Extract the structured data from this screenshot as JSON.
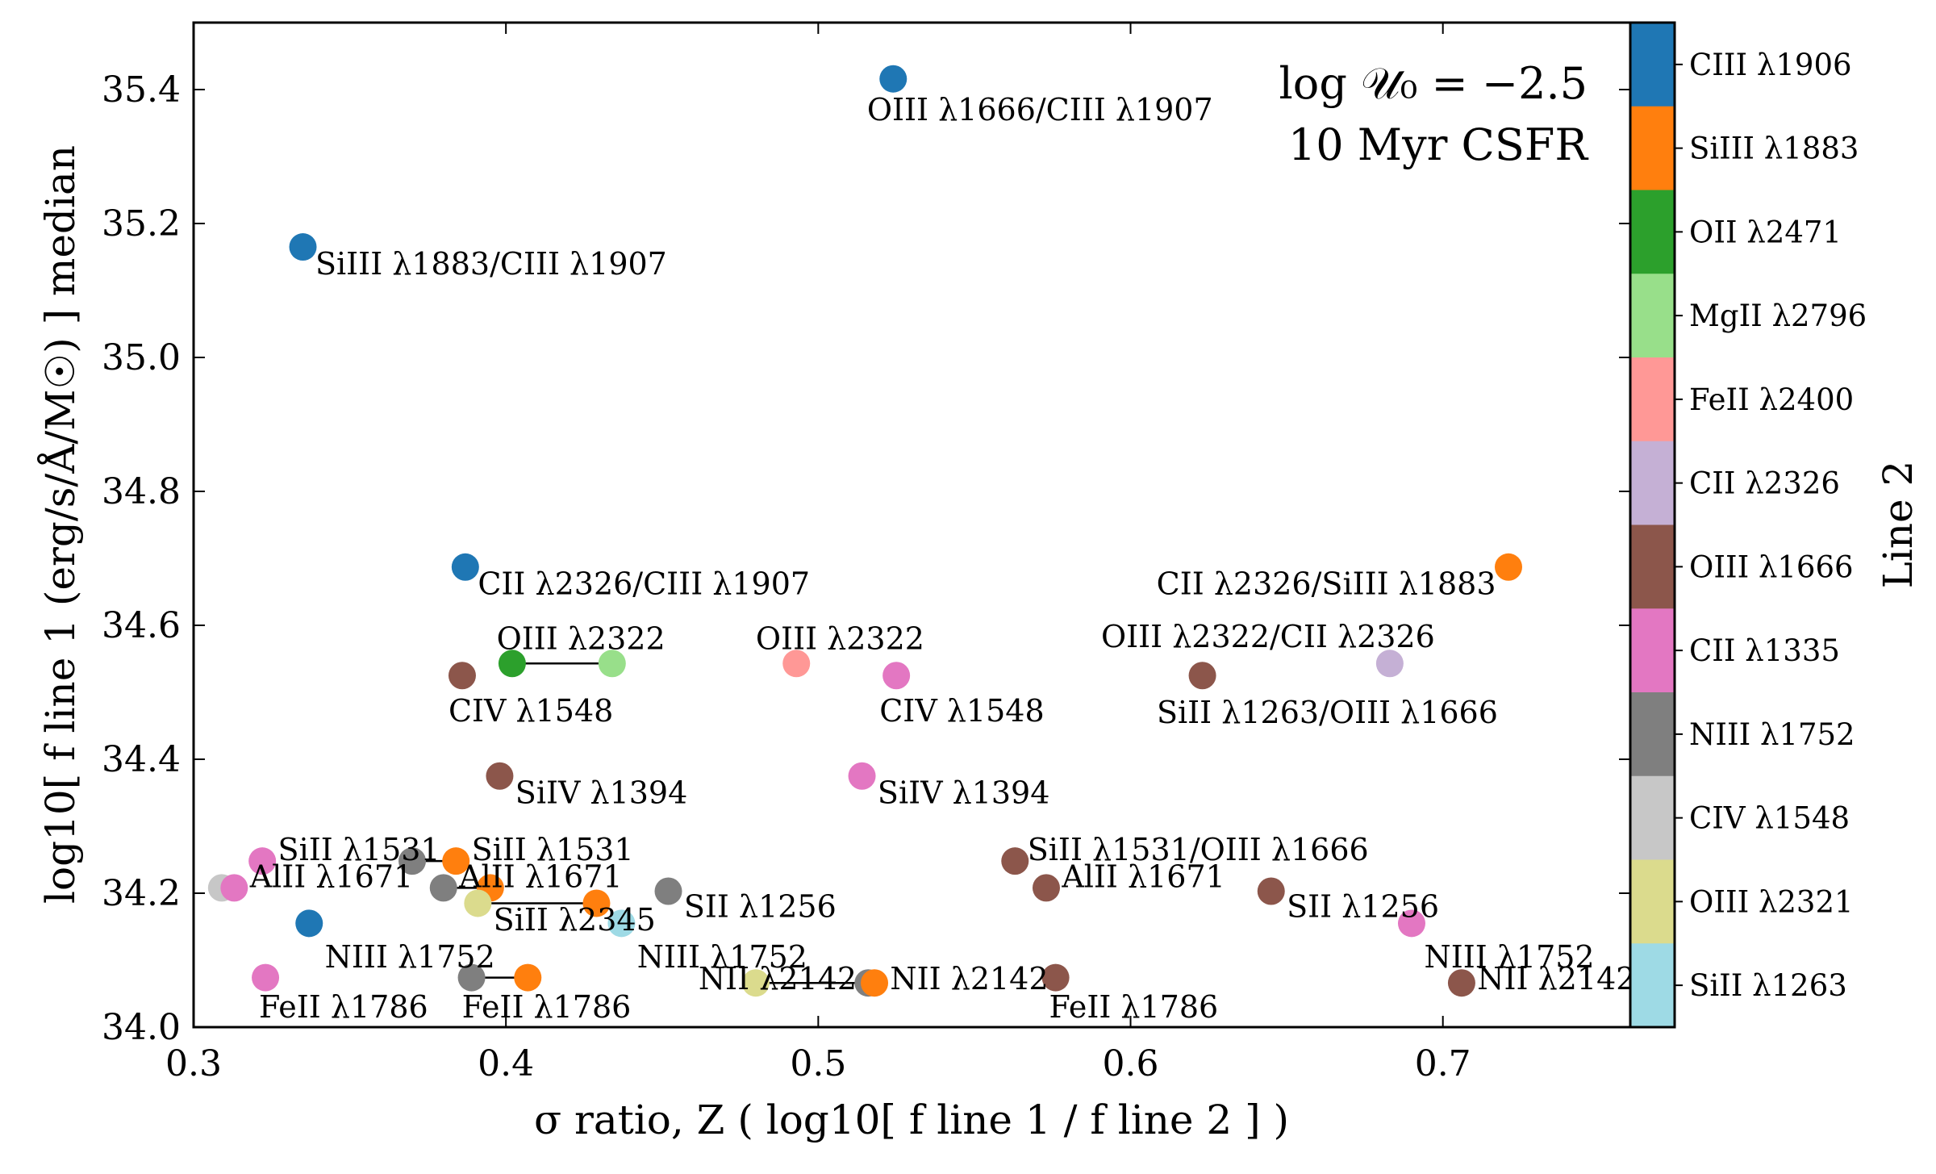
{
  "chart_data": {
    "type": "scatter",
    "xlabel": "σ ratio, Z ( log10[ f line 1 / f line 2 ] )",
    "ylabel": "log10[ f line 1 (erg/s/Å/M☉) ] median",
    "xlim": [
      0.3,
      0.76
    ],
    "ylim": [
      34.0,
      35.5
    ],
    "xticks": [
      "0.3",
      "0.4",
      "0.5",
      "0.6",
      "0.7"
    ],
    "yticks": [
      "34.0",
      "34.2",
      "34.4",
      "34.6",
      "34.8",
      "35.0",
      "35.2",
      "35.4"
    ],
    "annotation": [
      "log 𝒰₀ = −2.5",
      "10 Myr CSFR"
    ],
    "colorbar": {
      "title": "Line 2",
      "entries": [
        {
          "label": "CIII λ1906",
          "color": "#1f77b4"
        },
        {
          "label": "SiIII λ1883",
          "color": "#ff7f0e"
        },
        {
          "label": "OII λ2471",
          "color": "#2ca02c"
        },
        {
          "label": "MgII λ2796",
          "color": "#98df8a"
        },
        {
          "label": "FeII λ2400",
          "color": "#ff9896"
        },
        {
          "label": "CII λ2326",
          "color": "#c5b0d5"
        },
        {
          "label": "OIII λ1666",
          "color": "#8c564b"
        },
        {
          "label": "CII λ1335",
          "color": "#e377c2"
        },
        {
          "label": "NIII λ1752",
          "color": "#7f7f7f"
        },
        {
          "label": "CIV λ1548",
          "color": "#c7c7c7"
        },
        {
          "label": "OIII λ2321",
          "color": "#dbdb8d"
        },
        {
          "label": "SiII λ1263",
          "color": "#9edae5"
        }
      ]
    },
    "connectors": [
      {
        "x1": 0.402,
        "y1": 34.543,
        "x2": 0.434,
        "y2": 34.543
      },
      {
        "x1": 0.37,
        "y1": 34.248,
        "x2": 0.384,
        "y2": 34.248
      },
      {
        "x1": 0.38,
        "y1": 34.208,
        "x2": 0.395,
        "y2": 34.208
      },
      {
        "x1": 0.391,
        "y1": 34.185,
        "x2": 0.429,
        "y2": 34.185
      },
      {
        "x1": 0.389,
        "y1": 34.074,
        "x2": 0.407,
        "y2": 34.074
      },
      {
        "x1": 0.48,
        "y1": 34.066,
        "x2": 0.518,
        "y2": 34.066
      }
    ],
    "points": [
      {
        "x": 0.524,
        "y": 35.416,
        "color": "#1f77b4",
        "label": "OIII λ1666/CIII λ1907",
        "lx": 0.571,
        "ly": 35.37,
        "anchor": "middle"
      },
      {
        "x": 0.335,
        "y": 35.165,
        "color": "#1f77b4",
        "label": "SiIII λ1883/CIII λ1907",
        "lx": 0.339,
        "ly": 35.14,
        "anchor": "start"
      },
      {
        "x": 0.387,
        "y": 34.687,
        "color": "#1f77b4",
        "label": "CII λ2326/CIII λ1907",
        "lx": 0.391,
        "ly": 34.662,
        "anchor": "start"
      },
      {
        "x": 0.721,
        "y": 34.687,
        "color": "#ff7f0e",
        "label": "CII λ2326/SiIII λ1883",
        "lx": 0.717,
        "ly": 34.662,
        "anchor": "end"
      },
      {
        "x": 0.386,
        "y": 34.525,
        "color": "#8c564b",
        "label": "CIV λ1548",
        "lx": 0.408,
        "ly": 34.472,
        "anchor": "middle"
      },
      {
        "x": 0.402,
        "y": 34.543,
        "color": "#2ca02c",
        "label": "",
        "lx": 0,
        "ly": 0,
        "anchor": "start"
      },
      {
        "x": 0.434,
        "y": 34.543,
        "color": "#98df8a",
        "label": "OIII λ2322",
        "lx": 0.424,
        "ly": 34.58,
        "anchor": "middle"
      },
      {
        "x": 0.493,
        "y": 34.543,
        "color": "#ff9896",
        "label": "OIII λ2322",
        "lx": 0.507,
        "ly": 34.58,
        "anchor": "middle"
      },
      {
        "x": 0.525,
        "y": 34.525,
        "color": "#e377c2",
        "label": "CIV λ1548",
        "lx": 0.546,
        "ly": 34.472,
        "anchor": "middle"
      },
      {
        "x": 0.623,
        "y": 34.525,
        "color": "#8c564b",
        "label": "OIII λ2322/CII λ2326",
        "lx": 0.644,
        "ly": 34.583,
        "anchor": "middle"
      },
      {
        "x": 0.683,
        "y": 34.543,
        "color": "#c5b0d5",
        "label": "SiII λ1263/OIII λ1666",
        "lx": 0.663,
        "ly": 34.47,
        "anchor": "middle"
      },
      {
        "x": 0.398,
        "y": 34.375,
        "color": "#8c564b",
        "label": "SiIV λ1394",
        "lx": 0.403,
        "ly": 34.35,
        "anchor": "start"
      },
      {
        "x": 0.514,
        "y": 34.375,
        "color": "#e377c2",
        "label": "SiIV λ1394",
        "lx": 0.519,
        "ly": 34.35,
        "anchor": "start"
      },
      {
        "x": 0.322,
        "y": 34.248,
        "color": "#e377c2",
        "label": "SiII λ1531",
        "lx": 0.327,
        "ly": 34.265,
        "anchor": "start"
      },
      {
        "x": 0.37,
        "y": 34.248,
        "color": "#7f7f7f",
        "label": "",
        "lx": 0,
        "ly": 0,
        "anchor": "start"
      },
      {
        "x": 0.384,
        "y": 34.248,
        "color": "#ff7f0e",
        "label": "SiII λ1531",
        "lx": 0.389,
        "ly": 34.265,
        "anchor": "start"
      },
      {
        "x": 0.309,
        "y": 34.208,
        "color": "#c7c7c7",
        "label": "",
        "lx": 0,
        "ly": 0,
        "anchor": "start"
      },
      {
        "x": 0.313,
        "y": 34.208,
        "color": "#e377c2",
        "label": "AlII λ1671",
        "lx": 0.318,
        "ly": 34.225,
        "anchor": "start"
      },
      {
        "x": 0.38,
        "y": 34.208,
        "color": "#7f7f7f",
        "label": "",
        "lx": 0,
        "ly": 0,
        "anchor": "start"
      },
      {
        "x": 0.395,
        "y": 34.208,
        "color": "#ff7f0e",
        "label": "AlII λ1671",
        "lx": 0.385,
        "ly": 34.225,
        "anchor": "start"
      },
      {
        "x": 0.391,
        "y": 34.185,
        "color": "#dbdb8d",
        "label": "SiII λ2345",
        "lx": 0.396,
        "ly": 34.16,
        "anchor": "start"
      },
      {
        "x": 0.429,
        "y": 34.185,
        "color": "#ff7f0e",
        "label": "",
        "lx": 0,
        "ly": 0,
        "anchor": "start"
      },
      {
        "x": 0.437,
        "y": 34.155,
        "color": "#9edae5",
        "label": "NIII λ1752",
        "lx": 0.442,
        "ly": 34.105,
        "anchor": "start"
      },
      {
        "x": 0.452,
        "y": 34.203,
        "color": "#7f7f7f",
        "label": "SII λ1256",
        "lx": 0.457,
        "ly": 34.18,
        "anchor": "start"
      },
      {
        "x": 0.337,
        "y": 34.155,
        "color": "#1f77b4",
        "label": "NIII λ1752",
        "lx": 0.342,
        "ly": 34.105,
        "anchor": "start"
      },
      {
        "x": 0.323,
        "y": 34.074,
        "color": "#e377c2",
        "label": "FeII λ1786",
        "lx": 0.348,
        "ly": 34.03,
        "anchor": "middle"
      },
      {
        "x": 0.389,
        "y": 34.074,
        "color": "#7f7f7f",
        "label": "",
        "lx": 0,
        "ly": 0,
        "anchor": "start"
      },
      {
        "x": 0.407,
        "y": 34.074,
        "color": "#ff7f0e",
        "label": "FeII λ1786",
        "lx": 0.413,
        "ly": 34.03,
        "anchor": "middle"
      },
      {
        "x": 0.48,
        "y": 34.066,
        "color": "#dbdb8d",
        "label": "NII λ2142",
        "lx": 0.487,
        "ly": 34.072,
        "anchor": "middle"
      },
      {
        "x": 0.516,
        "y": 34.066,
        "color": "#7f7f7f",
        "label": "",
        "lx": 0,
        "ly": 0,
        "anchor": "start"
      },
      {
        "x": 0.518,
        "y": 34.066,
        "color": "#ff7f0e",
        "label": "NII λ2142",
        "lx": 0.523,
        "ly": 34.072,
        "anchor": "start"
      },
      {
        "x": 0.563,
        "y": 34.248,
        "color": "#8c564b",
        "label": "SiII λ1531/OIII λ1666",
        "lx": 0.567,
        "ly": 34.265,
        "anchor": "start"
      },
      {
        "x": 0.573,
        "y": 34.208,
        "color": "#8c564b",
        "label": "AlII λ1671",
        "lx": 0.578,
        "ly": 34.225,
        "anchor": "start"
      },
      {
        "x": 0.645,
        "y": 34.203,
        "color": "#8c564b",
        "label": "SII λ1256",
        "lx": 0.65,
        "ly": 34.18,
        "anchor": "start"
      },
      {
        "x": 0.69,
        "y": 34.155,
        "color": "#e377c2",
        "label": "NIII λ1752",
        "lx": 0.694,
        "ly": 34.105,
        "anchor": "start"
      },
      {
        "x": 0.576,
        "y": 34.074,
        "color": "#8c564b",
        "label": "FeII λ1786",
        "lx": 0.601,
        "ly": 34.03,
        "anchor": "middle"
      },
      {
        "x": 0.706,
        "y": 34.066,
        "color": "#8c564b",
        "label": "NII λ2142",
        "lx": 0.711,
        "ly": 34.072,
        "anchor": "start"
      }
    ]
  }
}
